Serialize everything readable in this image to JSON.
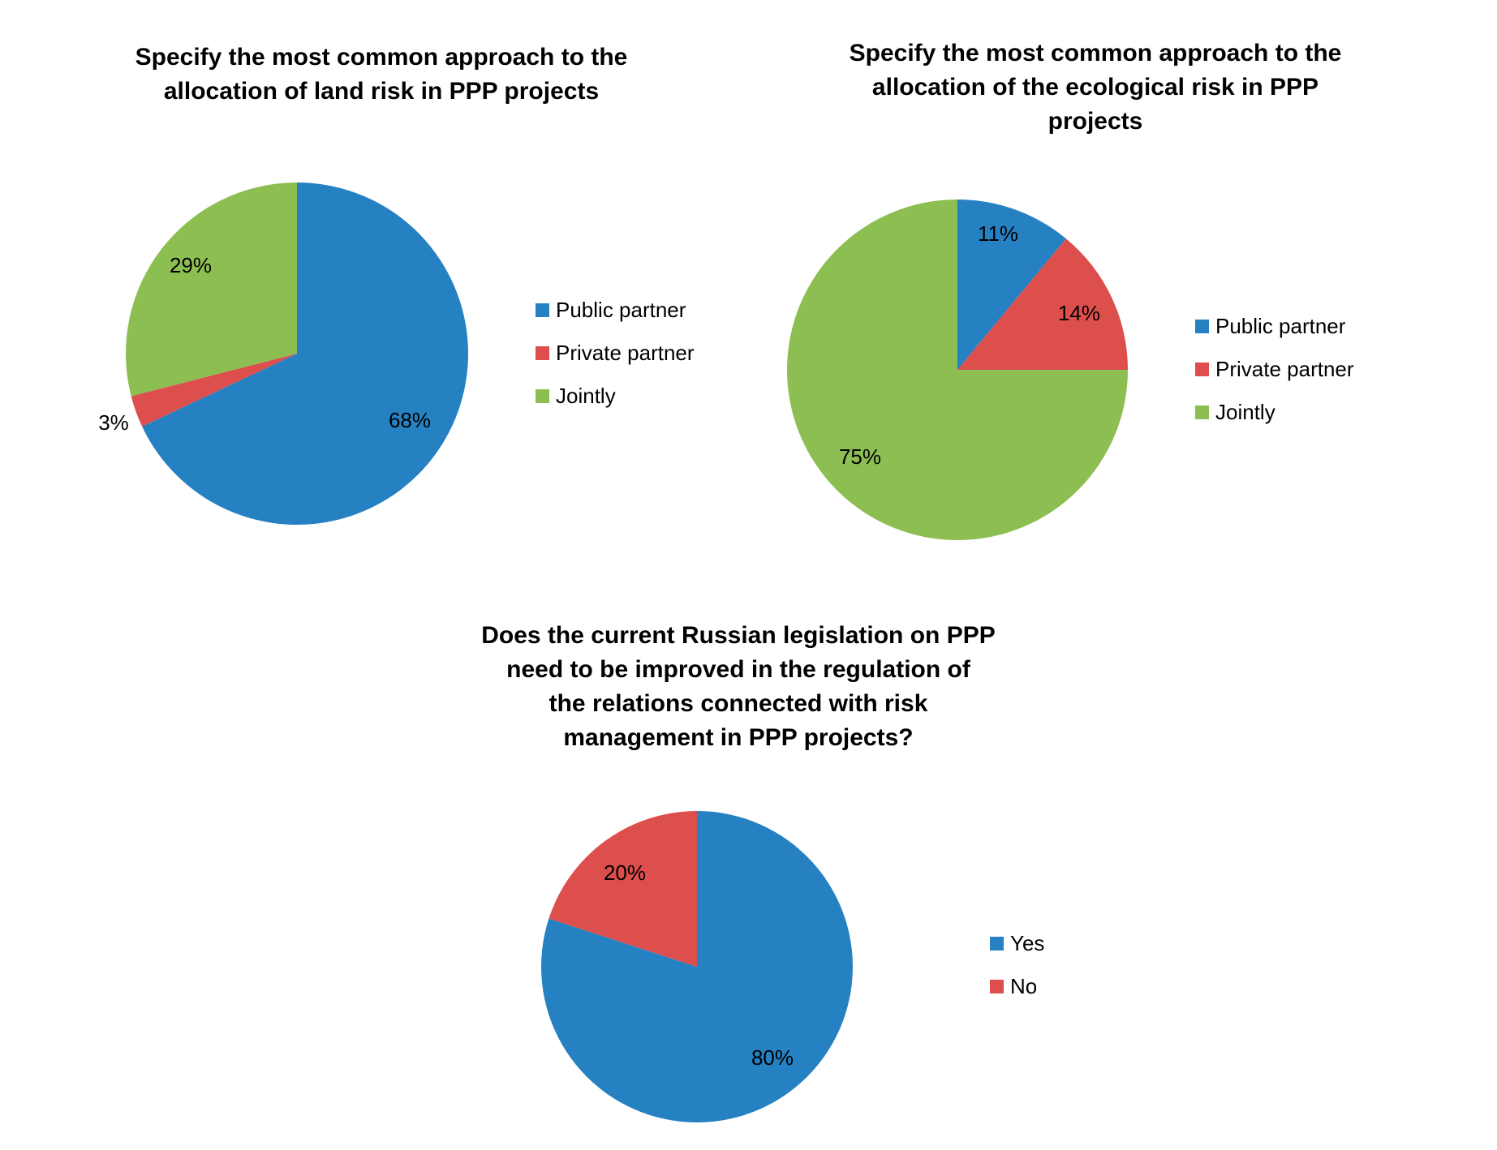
{
  "colors": {
    "blue": "#2681C2",
    "red": "#DC4F4D",
    "green": "#8DBE51"
  },
  "chart_data": [
    {
      "type": "pie",
      "title": "Specify the most common approach to the allocation of land risk in PPP projects",
      "title_lines": [
        "Specify the most common approach to the",
        "allocation of land risk in PPP projects"
      ],
      "categories": [
        "Public partner",
        "Private partner",
        "Jointly"
      ],
      "values": [
        68,
        3,
        29
      ],
      "labels": [
        "68%",
        "3%",
        "29%"
      ],
      "colors": [
        "#2681C2",
        "#DC4F4D",
        "#8DBE51"
      ],
      "legend_position": "right"
    },
    {
      "type": "pie",
      "title": "Specify the most common approach to the allocation of the ecological risk in PPP projects",
      "title_lines": [
        "Specify the most common approach to the",
        "allocation of the ecological risk in PPP",
        "projects"
      ],
      "categories": [
        "Public partner",
        "Private partner",
        "Jointly"
      ],
      "values": [
        11,
        14,
        75
      ],
      "labels": [
        "11%",
        "14%",
        "75%"
      ],
      "colors": [
        "#2681C2",
        "#DC4F4D",
        "#8DBE51"
      ],
      "legend_position": "right"
    },
    {
      "type": "pie",
      "title": "Does the current Russian legislation on PPP need to be improved in the regulation of the relations connected with risk management in PPP projects?",
      "title_lines": [
        "Does the current Russian legislation on PPP",
        "need to be improved in the regulation of",
        "the relations connected with risk",
        "management in PPP projects?"
      ],
      "categories": [
        "Yes",
        "No"
      ],
      "values": [
        80,
        20
      ],
      "labels": [
        "80%",
        "20%"
      ],
      "colors": [
        "#2681C2",
        "#DC4F4D"
      ],
      "legend_position": "right"
    }
  ]
}
